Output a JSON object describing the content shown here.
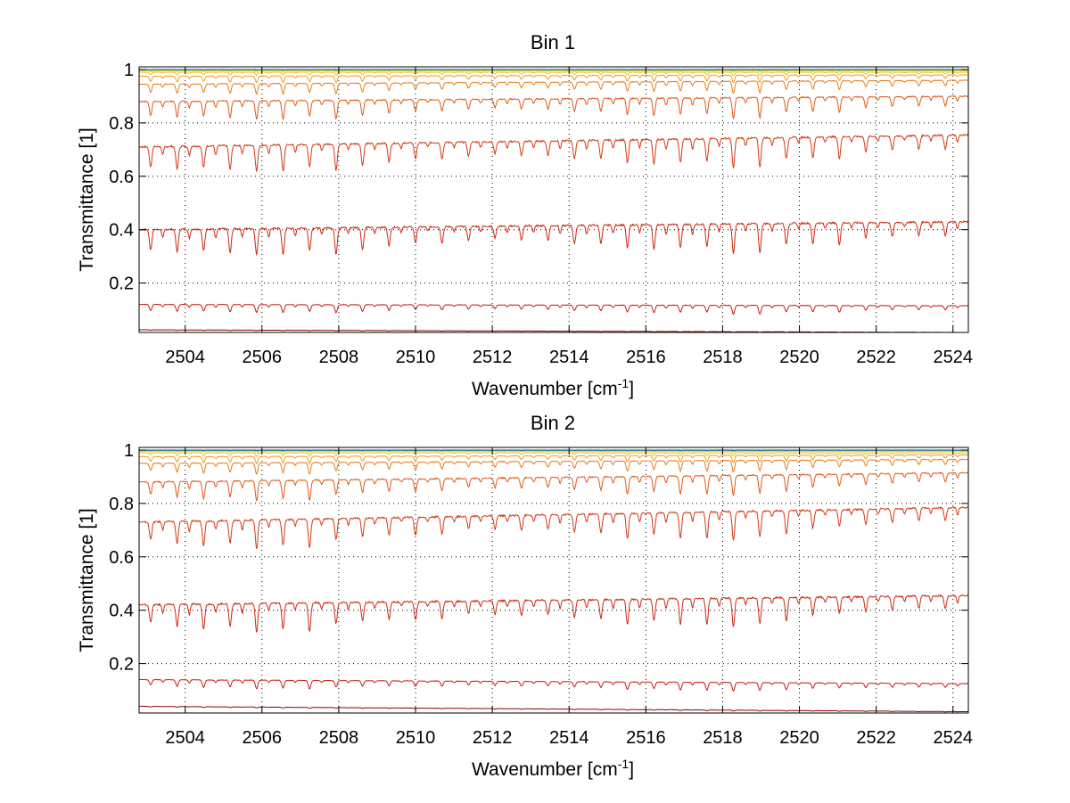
{
  "chart_data": [
    {
      "type": "line",
      "title": "Bin 1",
      "xlabel": "Wavenumber [cm",
      "xlabel_sup": "-1",
      "xlabel_suffix": "]",
      "ylabel": "Transmittance [1]",
      "xlim": [
        2502.8,
        2524.4
      ],
      "ylim": [
        0.015,
        1.01
      ],
      "xticks": [
        2504,
        2506,
        2508,
        2510,
        2512,
        2514,
        2516,
        2518,
        2520,
        2522,
        2524
      ],
      "xtick_labels": [
        "2504",
        "2506",
        "2508",
        "2510",
        "2512",
        "2514",
        "2516",
        "2518",
        "2520",
        "2522",
        "2524"
      ],
      "yticks": [
        0.2,
        0.4,
        0.6,
        0.8,
        1
      ],
      "ytick_labels": [
        "0.2",
        "0.4",
        "0.6",
        "0.8",
        "1"
      ],
      "grid": true,
      "grid_style": "dotted",
      "line_spacing_cm1": 0.69,
      "series": [
        {
          "color": "#8b0000",
          "base_start": 0.025,
          "base_end": 0.015,
          "dip": 0.002
        },
        {
          "color": "#c81a10",
          "base_start": 0.12,
          "base_end": 0.115,
          "dip": 0.03
        },
        {
          "color": "#cc2a12",
          "base_start": 0.4,
          "base_end": 0.43,
          "dip": 0.1
        },
        {
          "color": "#d43a14",
          "base_start": 0.71,
          "base_end": 0.755,
          "dip": 0.1
        },
        {
          "color": "#e05a18",
          "base_start": 0.88,
          "base_end": 0.9,
          "dip": 0.07
        },
        {
          "color": "#e87a1a",
          "base_start": 0.945,
          "base_end": 0.96,
          "dip": 0.04
        },
        {
          "color": "#ef9a1c",
          "base_start": 0.975,
          "base_end": 0.98,
          "dip": 0.025
        },
        {
          "color": "#f2bb1e",
          "base_start": 0.99,
          "base_end": 0.99,
          "dip": 0.012
        },
        {
          "color": "#e6e01e",
          "base_start": 0.995,
          "base_end": 0.995,
          "dip": 0.006
        },
        {
          "color": "#a8e040",
          "base_start": 0.998,
          "base_end": 0.998,
          "dip": 0.003
        },
        {
          "color": "#3cd8c8",
          "base_start": 0.999,
          "base_end": 0.999,
          "dip": 0.002
        },
        {
          "color": "#1a3a9c",
          "base_start": 1.0,
          "base_end": 1.0,
          "dip": 0.001
        }
      ]
    },
    {
      "type": "line",
      "title": "Bin 2",
      "xlabel": "Wavenumber [cm",
      "xlabel_sup": "-1",
      "xlabel_suffix": "]",
      "ylabel": "Transmittance [1]",
      "xlim": [
        2502.8,
        2524.4
      ],
      "ylim": [
        0.015,
        1.01
      ],
      "xticks": [
        2504,
        2506,
        2508,
        2510,
        2512,
        2514,
        2516,
        2518,
        2520,
        2522,
        2524
      ],
      "xtick_labels": [
        "2504",
        "2506",
        "2508",
        "2510",
        "2512",
        "2514",
        "2516",
        "2518",
        "2520",
        "2522",
        "2524"
      ],
      "yticks": [
        0.2,
        0.4,
        0.6,
        0.8,
        1
      ],
      "ytick_labels": [
        "0.2",
        "0.4",
        "0.6",
        "0.8",
        "1"
      ],
      "grid": true,
      "grid_style": "dotted",
      "line_spacing_cm1": 0.69,
      "series": [
        {
          "color": "#8b0000",
          "base_start": 0.04,
          "base_end": 0.02,
          "dip": 0.003
        },
        {
          "color": "#c81a10",
          "base_start": 0.14,
          "base_end": 0.125,
          "dip": 0.03
        },
        {
          "color": "#cc2a12",
          "base_start": 0.42,
          "base_end": 0.455,
          "dip": 0.1
        },
        {
          "color": "#d43a14",
          "base_start": 0.73,
          "base_end": 0.785,
          "dip": 0.1
        },
        {
          "color": "#e05a18",
          "base_start": 0.88,
          "base_end": 0.915,
          "dip": 0.07
        },
        {
          "color": "#e87a1a",
          "base_start": 0.95,
          "base_end": 0.965,
          "dip": 0.04
        },
        {
          "color": "#ef9a1c",
          "base_start": 0.975,
          "base_end": 0.982,
          "dip": 0.025
        },
        {
          "color": "#f2bb1e",
          "base_start": 0.99,
          "base_end": 0.99,
          "dip": 0.012
        },
        {
          "color": "#e6e01e",
          "base_start": 0.995,
          "base_end": 0.995,
          "dip": 0.006
        },
        {
          "color": "#a8e040",
          "base_start": 0.998,
          "base_end": 0.998,
          "dip": 0.003
        },
        {
          "color": "#3cd8c8",
          "base_start": 0.999,
          "base_end": 0.999,
          "dip": 0.002
        },
        {
          "color": "#1a3a9c",
          "base_start": 1.0,
          "base_end": 1.0,
          "dip": 0.001
        }
      ]
    }
  ]
}
